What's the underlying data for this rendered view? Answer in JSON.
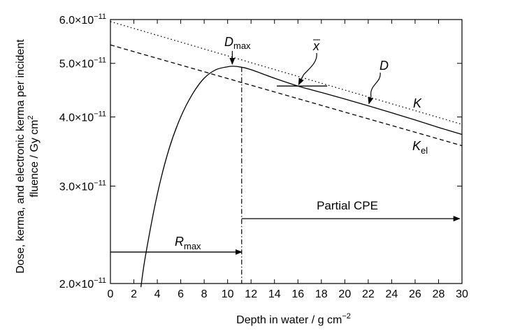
{
  "chart_data": {
    "type": "line",
    "xlabel": "Depth in water / g cm",
    "xlabel_sup": "−2",
    "ylabel_line1": "Dose, kerma, and electronic kerma per incident",
    "ylabel_line2": "fluence / Gy cm",
    "ylabel_sup": "2",
    "xlim": [
      0,
      30
    ],
    "ylim": [
      2e-11,
      6e-11
    ],
    "y_scale": "log",
    "grid": false,
    "x_ticks": [
      0,
      2,
      4,
      6,
      8,
      10,
      12,
      14,
      16,
      18,
      20,
      22,
      24,
      26,
      28,
      30
    ],
    "x_tick_labels": [
      "0",
      "2",
      "4",
      "6",
      "8",
      "10",
      "12",
      "14",
      "16",
      "18",
      "20",
      "22",
      "24",
      "26",
      "28",
      "30"
    ],
    "y_ticks": [
      {
        "value": 2e-11,
        "mantissa": "2.0×10",
        "exponent": "−11"
      },
      {
        "value": 3e-11,
        "mantissa": "3.0×10",
        "exponent": "−11"
      },
      {
        "value": 4e-11,
        "mantissa": "4.0×10",
        "exponent": "−11"
      },
      {
        "value": 5e-11,
        "mantissa": "5.0×10",
        "exponent": "−11"
      },
      {
        "value": 6e-11,
        "mantissa": "6.0×10",
        "exponent": "−11"
      }
    ],
    "series": [
      {
        "name": "K",
        "style": "dotted",
        "x": [
          0,
          30
        ],
        "y": [
          5.95e-11,
          3.88e-11
        ]
      },
      {
        "name": "Kel",
        "style": "dashed",
        "x": [
          0,
          30
        ],
        "y": [
          5.4e-11,
          3.55e-11
        ]
      },
      {
        "name": "D",
        "style": "solid",
        "x": [
          2.6,
          3.0,
          4.0,
          5.0,
          6.0,
          7.0,
          8.0,
          9.0,
          10.0,
          10.5,
          11.2,
          12.0,
          14.0,
          16.0,
          18.0,
          20.0,
          22.0,
          24.0,
          26.0,
          28.0,
          30.0
        ],
        "y": [
          1.97e-11,
          2.25e-11,
          2.9e-11,
          3.5e-11,
          4e-11,
          4.4e-11,
          4.7e-11,
          4.87e-11,
          4.93e-11,
          4.94e-11,
          4.92e-11,
          4.87e-11,
          4.7e-11,
          4.55e-11,
          4.43e-11,
          4.31e-11,
          4.19e-11,
          4.07e-11,
          3.95e-11,
          3.83e-11,
          3.72e-11
        ]
      }
    ],
    "reference_lines": {
      "rmax_x": 11.2,
      "xbar_segment": {
        "x1": 14.2,
        "x2": 18.5,
        "y": 4.55e-11
      },
      "rmax_arrow": {
        "x1": 0,
        "x2": 11.2,
        "y": 2.28e-11
      },
      "cpe_arrow": {
        "x1": 11.2,
        "x2": 29.8,
        "y": 2.62e-11
      }
    },
    "annotations": {
      "dmax_label": "D",
      "dmax_sub": "max",
      "dmax_at": {
        "x": 10.4,
        "y": 4.94e-11
      },
      "xbar_label": "x",
      "xbar_at": {
        "x": 16.0,
        "y": 4.55e-11
      },
      "d_label": "D",
      "d_at": {
        "x": 22.0,
        "y": 4.19e-11
      },
      "k_label": "K",
      "kel_label": "K",
      "kel_sub": "el",
      "rmax_label": "R",
      "rmax_sub": "max",
      "cpe_label": "Partial CPE"
    }
  }
}
